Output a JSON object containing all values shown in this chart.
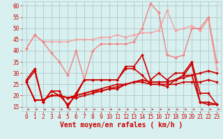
{
  "x": [
    0,
    1,
    2,
    3,
    4,
    5,
    6,
    7,
    8,
    9,
    10,
    11,
    12,
    13,
    14,
    15,
    16,
    17,
    18,
    19,
    20,
    21,
    22,
    23
  ],
  "series": [
    {
      "y": [
        41,
        47,
        44,
        44,
        44,
        44,
        45,
        45,
        45,
        46,
        46,
        47,
        46,
        47,
        48,
        48,
        49,
        58,
        49,
        50,
        51,
        49,
        54,
        32
      ],
      "color": "#f5a0a0",
      "lw": 1.0,
      "marker": "D",
      "ms": 2.0,
      "zorder": 2
    },
    {
      "y": [
        41,
        47,
        44,
        39,
        35,
        29,
        40,
        27,
        40,
        43,
        43,
        43,
        43,
        44,
        50,
        61,
        57,
        38,
        37,
        38,
        50,
        50,
        55,
        35
      ],
      "color": "#f08080",
      "lw": 1.0,
      "marker": "D",
      "ms": 2.0,
      "zorder": 2
    },
    {
      "y": [
        27,
        32,
        17,
        22,
        22,
        15,
        21,
        27,
        27,
        27,
        27,
        27,
        33,
        33,
        38,
        27,
        30,
        27,
        30,
        30,
        35,
        21,
        21,
        16
      ],
      "color": "#cc0000",
      "lw": 1.2,
      "marker": "D",
      "ms": 2.0,
      "zorder": 3
    },
    {
      "y": [
        26,
        31,
        17,
        22,
        20,
        16,
        20,
        27,
        27,
        27,
        27,
        27,
        32,
        32,
        29,
        25,
        25,
        24,
        27,
        29,
        34,
        17,
        16,
        16
      ],
      "color": "#cc0000",
      "lw": 1.2,
      "marker": "D",
      "ms": 2.0,
      "zorder": 3
    },
    {
      "y": [
        26,
        18,
        18,
        20,
        20,
        19,
        20,
        21,
        22,
        22,
        23,
        23,
        25,
        26,
        26,
        25,
        25,
        25,
        25,
        26,
        26,
        26,
        27,
        26
      ],
      "color": "#cc0000",
      "lw": 1.2,
      "marker": "D",
      "ms": 2.0,
      "zorder": 3
    },
    {
      "y": [
        26,
        18,
        18,
        20,
        20,
        19,
        20,
        21,
        22,
        23,
        24,
        25,
        25,
        26,
        27,
        26,
        26,
        26,
        27,
        28,
        29,
        30,
        31,
        30
      ],
      "color": "#cc0000",
      "lw": 1.2,
      "marker": "D",
      "ms": 2.0,
      "zorder": 3
    },
    {
      "y": [
        26,
        18,
        18,
        20,
        20,
        19,
        19,
        20,
        21,
        22,
        23,
        24,
        25,
        26,
        27,
        26,
        26,
        26,
        27,
        29,
        29,
        17,
        17,
        16
      ],
      "color": "#cc0000",
      "lw": 1.2,
      "marker": "D",
      "ms": 2.0,
      "zorder": 3
    }
  ],
  "xlabel": "Vent moyen/en rafales ( km/h )",
  "bg_color": "#d8f0f0",
  "grid_color": "#b0c8c8",
  "ylim": [
    13,
    62
  ],
  "yticks": [
    15,
    20,
    25,
    30,
    35,
    40,
    45,
    50,
    55,
    60
  ],
  "xticks": [
    0,
    1,
    2,
    3,
    4,
    5,
    6,
    7,
    8,
    9,
    10,
    11,
    12,
    13,
    14,
    15,
    16,
    17,
    18,
    19,
    20,
    21,
    22,
    23
  ],
  "xlabel_color": "#cc0000",
  "xlabel_fontsize": 7.0,
  "tick_fontsize": 5.5,
  "tick_color": "#cc0000",
  "arrow_color": "#cc0000"
}
